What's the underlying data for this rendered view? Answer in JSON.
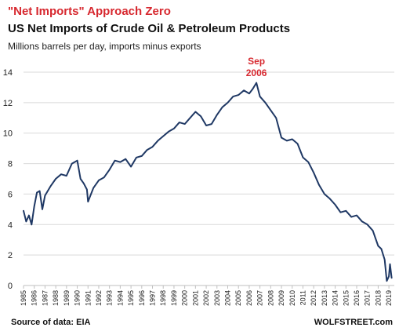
{
  "header": {
    "title": "\"Net Imports\" Approach Zero",
    "subtitle": "US Net Imports of Crude Oil & Petroleum Products",
    "caption": "Millions barrels per day, imports minus exports"
  },
  "footer": {
    "source": "Source of data: EIA",
    "brand": "WOLFSTREET.com"
  },
  "colors": {
    "title": "#d7282f",
    "annotation": "#d7282f",
    "line": "#1f3864",
    "grid": "#d9d9d9",
    "axis": "#bfbfbf"
  },
  "chart_data": {
    "type": "line",
    "title": "US Net Imports of Crude Oil & Petroleum Products",
    "xlabel": "",
    "ylabel": "",
    "ylim": [
      0,
      14
    ],
    "yticks": [
      0,
      2,
      4,
      6,
      8,
      10,
      12,
      14
    ],
    "xlim": [
      1985,
      2019.5
    ],
    "xticks": [
      "1985",
      "1986",
      "1987",
      "1988",
      "1989",
      "1990",
      "1991",
      "1992",
      "1993",
      "1994",
      "1995",
      "1996",
      "1997",
      "1998",
      "1999",
      "2000",
      "2001",
      "2002",
      "2003",
      "2004",
      "2005",
      "2006",
      "2007",
      "2008",
      "2009",
      "2010",
      "2011",
      "2012",
      "2013",
      "2014",
      "2015",
      "2016",
      "2017",
      "2018",
      "2019"
    ],
    "grid": "horizontal",
    "annotation": {
      "label_lines": [
        "Sep",
        "2006"
      ],
      "x": 2006.67,
      "y": 13.2
    },
    "series": [
      {
        "x": [
          1985,
          1985.25,
          1985.5,
          1985.75,
          1986,
          1986.25,
          1986.5,
          1986.75,
          1987,
          1987.5,
          1988,
          1988.5,
          1989,
          1989.5,
          1990,
          1990.3,
          1990.6,
          1990.9,
          1991,
          1991.5,
          1992,
          1992.5,
          1993,
          1993.5,
          1994,
          1994.5,
          1995,
          1995.5,
          1996,
          1996.5,
          1997,
          1997.5,
          1998,
          1998.5,
          1999,
          1999.5,
          2000,
          2000.5,
          2001,
          2001.5,
          2002,
          2002.5,
          2003,
          2003.5,
          2004,
          2004.5,
          2005,
          2005.5,
          2006,
          2006.33,
          2006.67,
          2007,
          2007.5,
          2008,
          2008.5,
          2009,
          2009.5,
          2010,
          2010.5,
          2011,
          2011.5,
          2012,
          2012.5,
          2013,
          2013.5,
          2014,
          2014.5,
          2015,
          2015.5,
          2016,
          2016.5,
          2017,
          2017.5,
          2018,
          2018.3,
          2018.6,
          2018.8,
          2019,
          2019.1,
          2019.25
        ],
        "y": [
          4.9,
          4.2,
          4.6,
          4.0,
          5.2,
          6.1,
          6.2,
          5.0,
          5.9,
          6.5,
          7.0,
          7.3,
          7.2,
          8.0,
          8.2,
          7.0,
          6.7,
          6.3,
          5.5,
          6.4,
          6.9,
          7.1,
          7.6,
          8.2,
          8.1,
          8.3,
          7.8,
          8.4,
          8.5,
          8.9,
          9.1,
          9.5,
          9.8,
          10.1,
          10.3,
          10.7,
          10.6,
          11.0,
          11.4,
          11.1,
          10.5,
          10.6,
          11.2,
          11.7,
          12.0,
          12.4,
          12.5,
          12.8,
          12.6,
          12.9,
          13.3,
          12.4,
          12.0,
          11.5,
          11.0,
          9.7,
          9.5,
          9.6,
          9.3,
          8.4,
          8.1,
          7.4,
          6.6,
          6.0,
          5.7,
          5.3,
          4.8,
          4.9,
          4.5,
          4.6,
          4.2,
          4.0,
          3.6,
          2.6,
          2.4,
          1.7,
          0.3,
          0.6,
          1.4,
          0.5
        ]
      }
    ]
  }
}
